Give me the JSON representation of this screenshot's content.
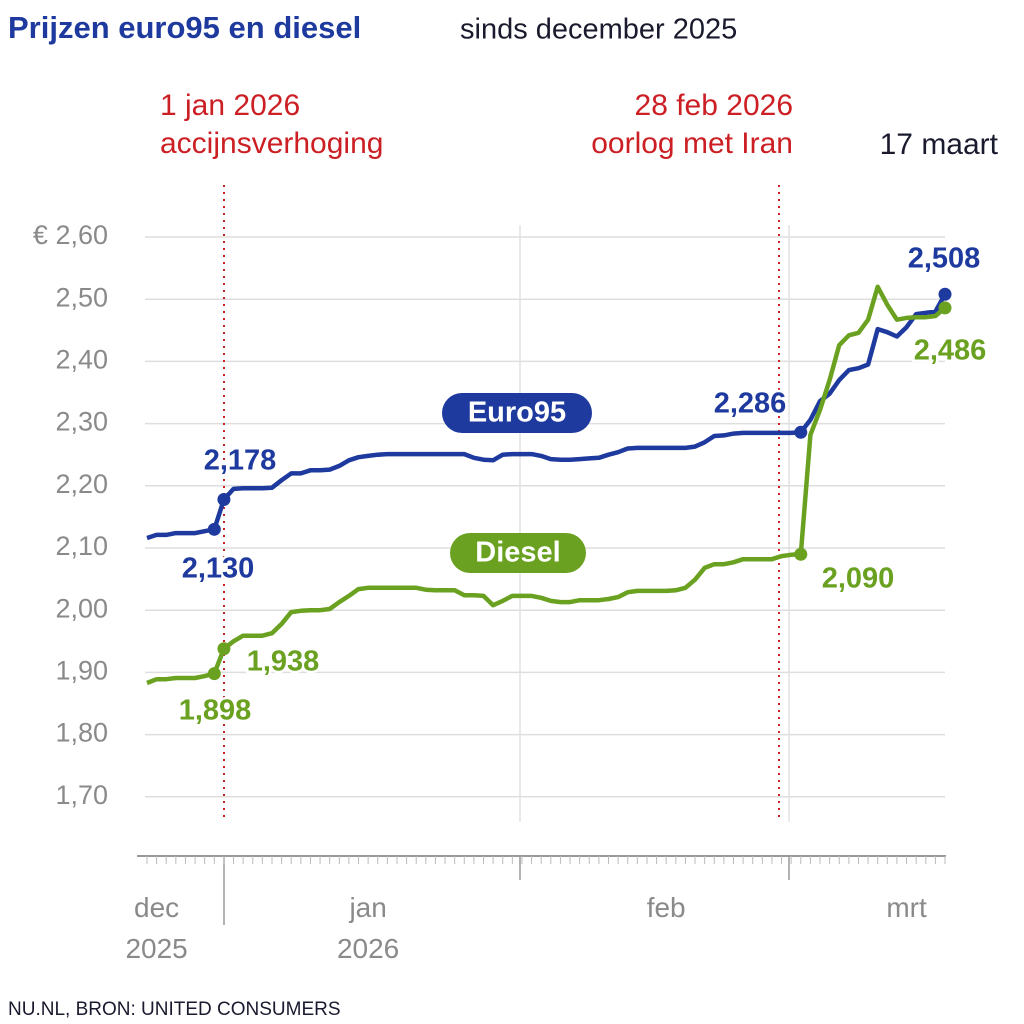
{
  "chart_data": {
    "type": "line",
    "title": "Prijzen euro95 en diesel",
    "subtitle": "sinds december 2025",
    "source": "NU.NL, BRON: UNITED CONSUMERS",
    "annotations": [
      {
        "lines": [
          "1 jan 2026",
          "accijnsverhoging"
        ],
        "color": "#cc1f24"
      },
      {
        "lines": [
          "28 feb 2026",
          "oorlog met Iran"
        ],
        "color": "#cc1f24"
      },
      {
        "lines": [
          "17 maart"
        ],
        "color": "#1a1a2e"
      }
    ],
    "categories": [
      null,
      "dec 2025",
      null,
      null,
      null,
      null,
      null,
      null,
      null,
      null,
      null,
      null,
      null,
      null,
      null,
      null,
      null,
      null,
      null,
      null,
      null,
      null,
      null,
      "jan 2026",
      null,
      null,
      null,
      null,
      null,
      null,
      null,
      null,
      null,
      null,
      null,
      null,
      null,
      null,
      null,
      null,
      null,
      null,
      null,
      null,
      null,
      null,
      null,
      null,
      null,
      null,
      null,
      null,
      null,
      null,
      "feb",
      null,
      null,
      null,
      null,
      null,
      null,
      null,
      null,
      null,
      null,
      null,
      null,
      null,
      null,
      null,
      null,
      null,
      null,
      null,
      null,
      null,
      null,
      null,
      null,
      "mrt",
      null,
      null,
      null,
      null
    ],
    "series": [
      {
        "name": "Euro95",
        "color": "#1f3a9e",
        "values": [
          2.116,
          2.121,
          2.121,
          2.124,
          2.124,
          2.124,
          2.127,
          2.13,
          2.178,
          2.195,
          2.196,
          2.196,
          2.196,
          2.197,
          2.209,
          2.22,
          2.22,
          2.225,
          2.225,
          2.226,
          2.232,
          2.241,
          2.246,
          2.248,
          2.25,
          2.251,
          2.251,
          2.251,
          2.251,
          2.251,
          2.251,
          2.251,
          2.251,
          2.251,
          2.245,
          2.242,
          2.241,
          2.25,
          2.251,
          2.251,
          2.251,
          2.248,
          2.243,
          2.242,
          2.242,
          2.243,
          2.244,
          2.245,
          2.25,
          2.254,
          2.26,
          2.261,
          2.261,
          2.261,
          2.261,
          2.261,
          2.261,
          2.263,
          2.27,
          2.28,
          2.281,
          2.284,
          2.285,
          2.285,
          2.285,
          2.285,
          2.285,
          2.285,
          2.286,
          2.306,
          2.336,
          2.348,
          2.37,
          2.386,
          2.389,
          2.395,
          2.452,
          2.447,
          2.44,
          2.455,
          2.476,
          2.478,
          2.48,
          2.508
        ],
        "value_labels": [
          null,
          null,
          null,
          null,
          null,
          null,
          null,
          "2,130",
          "2,178",
          null,
          null,
          null,
          null,
          null,
          null,
          null,
          null,
          null,
          null,
          null,
          null,
          null,
          null,
          null,
          null,
          null,
          null,
          null,
          null,
          null,
          null,
          null,
          null,
          null,
          null,
          null,
          null,
          null,
          null,
          null,
          null,
          null,
          null,
          null,
          null,
          null,
          null,
          null,
          null,
          null,
          null,
          null,
          null,
          null,
          null,
          null,
          null,
          null,
          null,
          null,
          null,
          null,
          null,
          null,
          null,
          null,
          null,
          null,
          "2,286",
          null,
          null,
          null,
          null,
          null,
          null,
          null,
          null,
          null,
          null,
          null,
          null,
          null,
          null,
          "2,508"
        ]
      },
      {
        "name": "Diesel",
        "color": "#6aa121",
        "values": [
          1.883,
          1.889,
          1.889,
          1.891,
          1.891,
          1.891,
          1.894,
          1.898,
          1.938,
          1.95,
          1.959,
          1.959,
          1.959,
          1.963,
          1.978,
          1.997,
          1.999,
          2.0,
          2.0,
          2.002,
          2.013,
          2.023,
          2.034,
          2.036,
          2.036,
          2.036,
          2.036,
          2.036,
          2.036,
          2.033,
          2.032,
          2.032,
          2.032,
          2.024,
          2.024,
          2.023,
          2.008,
          2.015,
          2.023,
          2.023,
          2.023,
          2.02,
          2.015,
          2.013,
          2.013,
          2.016,
          2.016,
          2.016,
          2.018,
          2.021,
          2.029,
          2.031,
          2.031,
          2.031,
          2.031,
          2.032,
          2.036,
          2.049,
          2.068,
          2.074,
          2.074,
          2.077,
          2.082,
          2.082,
          2.082,
          2.082,
          2.087,
          2.089,
          2.09,
          2.282,
          2.322,
          2.37,
          2.426,
          2.442,
          2.446,
          2.467,
          2.52,
          2.491,
          2.467,
          2.47,
          2.471,
          2.471,
          2.473,
          2.486
        ],
        "value_labels": [
          null,
          null,
          null,
          null,
          null,
          null,
          null,
          "1,898",
          "1,938",
          null,
          null,
          null,
          null,
          null,
          null,
          null,
          null,
          null,
          null,
          null,
          null,
          null,
          null,
          null,
          null,
          null,
          null,
          null,
          null,
          null,
          null,
          null,
          null,
          null,
          null,
          null,
          null,
          null,
          null,
          null,
          null,
          null,
          null,
          null,
          null,
          null,
          null,
          null,
          null,
          null,
          null,
          null,
          null,
          null,
          null,
          null,
          null,
          null,
          null,
          null,
          null,
          null,
          null,
          null,
          null,
          null,
          null,
          null,
          "2,090",
          null,
          null,
          null,
          null,
          null,
          null,
          null,
          null,
          null,
          null,
          null,
          null,
          null,
          null,
          "2,486"
        ]
      }
    ],
    "ylim": [
      1.6,
      2.6
    ],
    "yticks": [
      {
        "value": 1.7,
        "label": "1,70"
      },
      {
        "value": 1.8,
        "label": "1,80"
      },
      {
        "value": 1.9,
        "label": "1,90"
      },
      {
        "value": 2.0,
        "label": "2,00"
      },
      {
        "value": 2.1,
        "label": "2,10"
      },
      {
        "value": 2.2,
        "label": "2,20"
      },
      {
        "value": 2.3,
        "label": "2,30"
      },
      {
        "value": 2.4,
        "label": "2,40"
      },
      {
        "value": 2.5,
        "label": "2,50"
      },
      {
        "value": 2.6,
        "label": "€ 2,60"
      }
    ],
    "grid": true
  }
}
